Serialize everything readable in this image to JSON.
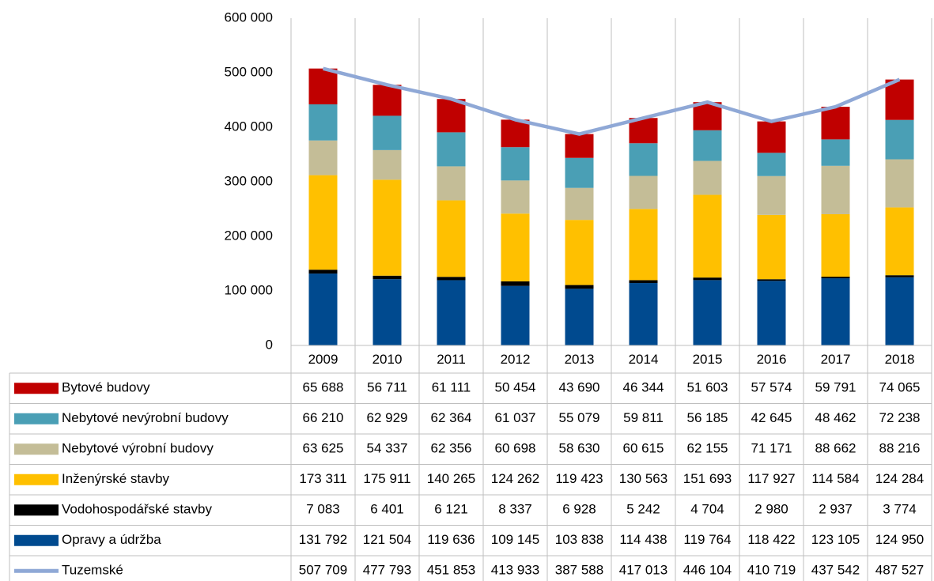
{
  "chart_data": {
    "type": "bar",
    "stacked": true,
    "categories": [
      "2009",
      "2010",
      "2011",
      "2012",
      "2013",
      "2014",
      "2015",
      "2016",
      "2017",
      "2018"
    ],
    "ylim": [
      0,
      600000
    ],
    "yticks": [
      0,
      {
        "value": 100000,
        "label": "100 000"
      },
      {
        "value": 200000,
        "label": "200 000"
      },
      {
        "value": 300000,
        "label": "300 000"
      },
      {
        "value": 400000,
        "label": "400 000"
      },
      {
        "value": 500000,
        "label": "500 000"
      },
      {
        "value": 600000,
        "label": "600 000"
      }
    ],
    "series": [
      {
        "name": "Bytové budovy",
        "type": "bar",
        "color": "#c00000",
        "values": [
          65688,
          56711,
          61111,
          50454,
          43690,
          46344,
          51603,
          57574,
          59791,
          74065
        ],
        "value_labels": [
          "65 688",
          "56 711",
          "61 111",
          "50 454",
          "43 690",
          "46 344",
          "51 603",
          "57 574",
          "59 791",
          "74 065"
        ]
      },
      {
        "name": "Nebytové nevýrobní budovy",
        "type": "bar",
        "color": "#4a9fb5",
        "values": [
          66210,
          62929,
          62364,
          61037,
          55079,
          59811,
          56185,
          42645,
          48462,
          72238
        ],
        "value_labels": [
          "66 210",
          "62 929",
          "62 364",
          "61 037",
          "55 079",
          "59 811",
          "56 185",
          "42 645",
          "48 462",
          "72 238"
        ]
      },
      {
        "name": "Nebytové výrobní budovy",
        "type": "bar",
        "color": "#c4bd97",
        "values": [
          63625,
          54337,
          62356,
          60698,
          58630,
          60615,
          62155,
          71171,
          88662,
          88216
        ],
        "value_labels": [
          "63 625",
          "54 337",
          "62 356",
          "60 698",
          "58 630",
          "60 615",
          "62 155",
          "71 171",
          "88 662",
          "88 216"
        ]
      },
      {
        "name": "Inženýrské stavby",
        "type": "bar",
        "color": "#ffc000",
        "values": [
          173311,
          175911,
          140265,
          124262,
          119423,
          130563,
          151693,
          117927,
          114584,
          124284
        ],
        "value_labels": [
          "173 311",
          "175 911",
          "140 265",
          "124 262",
          "119 423",
          "130 563",
          "151 693",
          "117 927",
          "114 584",
          "124 284"
        ]
      },
      {
        "name": "Vodohospodářské stavby",
        "type": "bar",
        "color": "#000000",
        "values": [
          7083,
          6401,
          6121,
          8337,
          6928,
          5242,
          4704,
          2980,
          2937,
          3774
        ],
        "value_labels": [
          "7 083",
          "6 401",
          "6 121",
          "8 337",
          "6 928",
          "5 242",
          "4 704",
          "2 980",
          "2 937",
          "3 774"
        ]
      },
      {
        "name": "Opravy a údržba",
        "type": "bar",
        "color": "#004a8f",
        "values": [
          131792,
          121504,
          119636,
          109145,
          103838,
          114438,
          119764,
          118422,
          123105,
          124950
        ],
        "value_labels": [
          "131 792",
          "121 504",
          "119 636",
          "109 145",
          "103 838",
          "114 438",
          "119 764",
          "118 422",
          "123 105",
          "124 950"
        ]
      },
      {
        "name": "Tuzemské",
        "type": "line",
        "color": "#8fa8d6",
        "values": [
          507709,
          477793,
          451853,
          413933,
          387588,
          417013,
          446104,
          410719,
          437542,
          487527
        ],
        "value_labels": [
          "507 709",
          "477 793",
          "451 853",
          "413 933",
          "387 588",
          "417 013",
          "446 104",
          "410 719",
          "437 542",
          "487 527"
        ]
      }
    ]
  }
}
